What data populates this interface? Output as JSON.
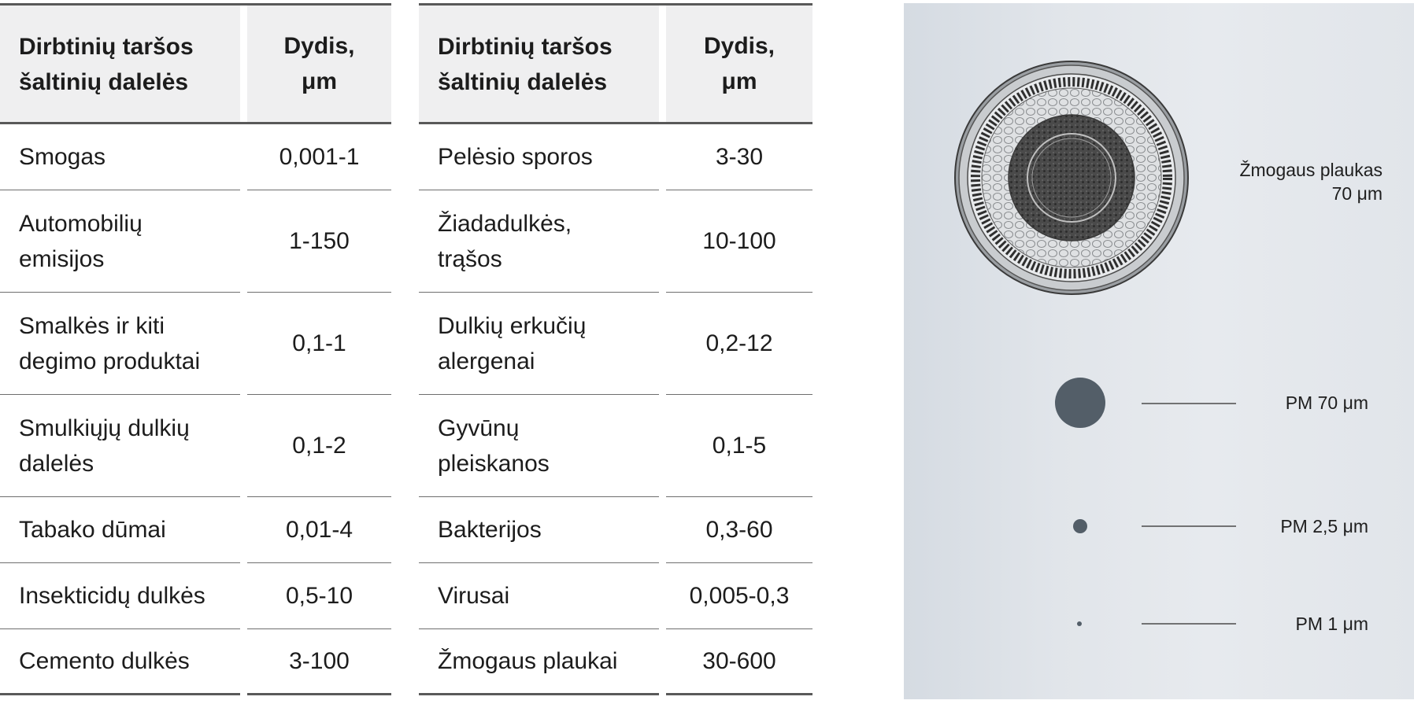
{
  "table_left": {
    "header": {
      "name_line1": "Dirbtinių taršos",
      "name_line2": "šaltinių dalelės",
      "size_line1": "Dydis,",
      "size_line2": "μm"
    },
    "rows": [
      {
        "name_line1": "Smogas",
        "name_line2": "",
        "size": "0,001-1"
      },
      {
        "name_line1": "Automobilių",
        "name_line2": "emisijos",
        "size": "1-150"
      },
      {
        "name_line1": "Smalkės ir kiti",
        "name_line2": "degimo produktai",
        "size": "0,1-1"
      },
      {
        "name_line1": "Smulkiųjų dulkių",
        "name_line2": "dalelės",
        "size": "0,1-2"
      },
      {
        "name_line1": "Tabako dūmai",
        "name_line2": "",
        "size": "0,01-4"
      },
      {
        "name_line1": "Insekticidų dulkės",
        "name_line2": "",
        "size": "0,5-10"
      },
      {
        "name_line1": "Cemento dulkės",
        "name_line2": "",
        "size": "3-100"
      }
    ]
  },
  "table_right": {
    "header": {
      "name_line1": "Dirbtinių taršos",
      "name_line2": "šaltinių dalelės",
      "size_line1": "Dydis,",
      "size_line2": "μm"
    },
    "rows": [
      {
        "name_line1": "Pelėsio sporos",
        "name_line2": "",
        "size": "3-30"
      },
      {
        "name_line1": "Žiadadulkės,",
        "name_line2": "trąšos",
        "size": "10-100"
      },
      {
        "name_line1": "Dulkių erkučių",
        "name_line2": "alergenai",
        "size": "0,2-12"
      },
      {
        "name_line1": "Gyvūnų",
        "name_line2": "pleiskanos",
        "size": "0,1-5"
      },
      {
        "name_line1": "Bakterijos",
        "name_line2": "",
        "size": "0,3-60"
      },
      {
        "name_line1": "Virusai",
        "name_line2": "",
        "size": "0,005-0,3"
      },
      {
        "name_line1": "Žmogaus plaukai",
        "name_line2": "",
        "size": "30-600"
      }
    ]
  },
  "illustration": {
    "hair_label_line1": "Žmogaus plaukas",
    "hair_label_line2": "70 μm",
    "pm70_label": "PM 70 μm",
    "pm25_label": "PM 2,5 μm",
    "pm1_label": "PM 1 μm",
    "hair_icon": "hair-cross-section-icon",
    "particle_color": "#535e68",
    "panel_color": "#e1e5ea"
  }
}
